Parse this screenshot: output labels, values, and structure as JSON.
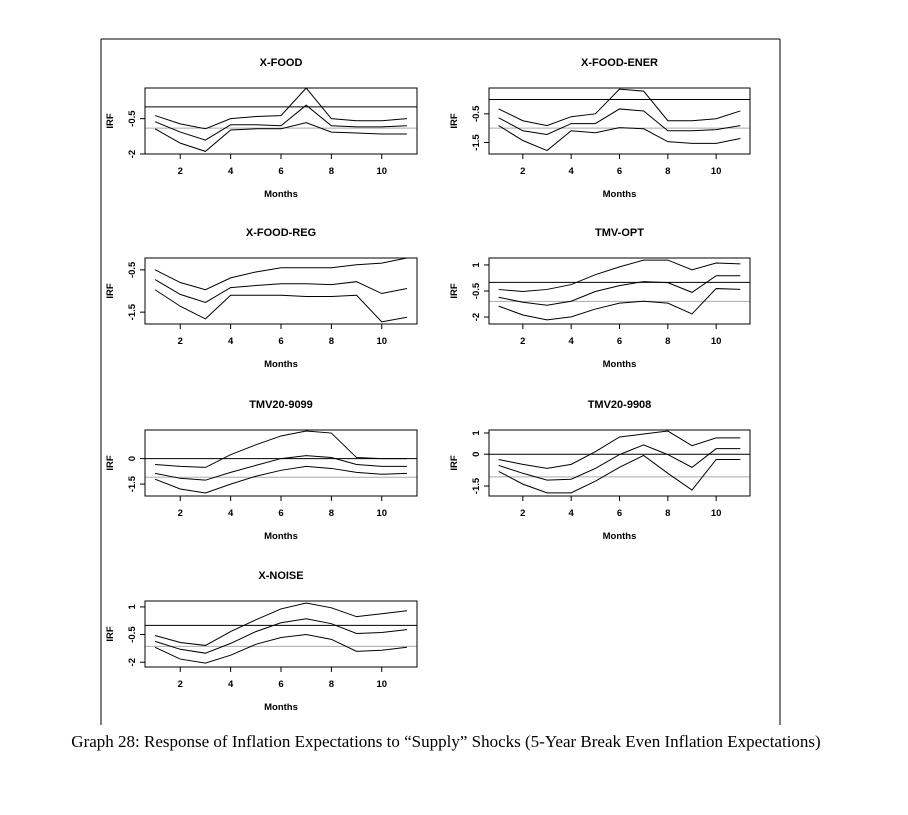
{
  "chart_data": [
    {
      "type": "line",
      "title": "X-FOOD",
      "xlabel": "Months",
      "ylabel": "IRF",
      "x": [
        1,
        2,
        3,
        4,
        5,
        6,
        7,
        8,
        9,
        10,
        11
      ],
      "xlim": [
        0.6,
        11.4
      ],
      "xticks": [
        2,
        4,
        6,
        8,
        10
      ],
      "ylim": [
        -2.0,
        0.8
      ],
      "yticks": [
        -0.5,
        -2.0
      ],
      "hlines": [
        {
          "value": 0,
          "color": "#000000"
        },
        {
          "value": -0.9,
          "color": "#aaaaaa"
        }
      ],
      "series": [
        {
          "color": "#000000",
          "values": [
            -0.37,
            -0.72,
            -0.93,
            -0.5,
            -0.41,
            -0.37,
            0.8,
            -0.5,
            -0.59,
            -0.59,
            -0.5
          ]
        },
        {
          "color": "#000000",
          "values": [
            -0.63,
            -1.07,
            -1.41,
            -0.76,
            -0.76,
            -0.8,
            0.07,
            -0.8,
            -0.85,
            -0.85,
            -0.8
          ]
        },
        {
          "color": "#000000",
          "values": [
            -0.93,
            -1.54,
            -1.89,
            -0.98,
            -0.93,
            -0.93,
            -0.67,
            -1.07,
            -1.11,
            -1.15,
            -1.15
          ]
        }
      ]
    },
    {
      "type": "line",
      "title": "X-FOOD-ENER",
      "xlabel": "Months",
      "ylabel": "IRF",
      "x": [
        1,
        2,
        3,
        4,
        5,
        6,
        7,
        8,
        9,
        10,
        11
      ],
      "xlim": [
        0.6,
        11.4
      ],
      "xticks": [
        2,
        4,
        6,
        8,
        10
      ],
      "ylim": [
        -1.9,
        0.4
      ],
      "yticks": [
        -0.5,
        -1.5
      ],
      "hlines": [
        {
          "value": 0,
          "color": "#000000"
        },
        {
          "value": -1.0,
          "color": "#aaaaaa"
        }
      ],
      "series": [
        {
          "color": "#000000",
          "values": [
            -0.33,
            -0.74,
            -0.91,
            -0.6,
            -0.5,
            0.36,
            0.29,
            -0.74,
            -0.74,
            -0.67,
            -0.4
          ]
        },
        {
          "color": "#000000",
          "values": [
            -0.64,
            -1.09,
            -1.22,
            -0.84,
            -0.84,
            -0.33,
            -0.4,
            -1.09,
            -1.09,
            -1.05,
            -0.91
          ]
        },
        {
          "color": "#000000",
          "values": [
            -0.91,
            -1.43,
            -1.78,
            -1.09,
            -1.16,
            -0.98,
            -1.02,
            -1.47,
            -1.53,
            -1.53,
            -1.36
          ]
        }
      ]
    },
    {
      "type": "line",
      "title": "X-FOOD-REG",
      "xlabel": "Months",
      "ylabel": "IRF",
      "x": [
        1,
        2,
        3,
        4,
        5,
        6,
        7,
        8,
        9,
        10,
        11
      ],
      "xlim": [
        0.6,
        11.4
      ],
      "xticks": [
        2,
        4,
        6,
        8,
        10
      ],
      "ylim": [
        -1.78,
        -0.22
      ],
      "yticks": [
        -0.5,
        -1.5
      ],
      "hlines": [],
      "series": [
        {
          "color": "#000000",
          "values": [
            -0.5,
            -0.8,
            -0.97,
            -0.69,
            -0.55,
            -0.45,
            -0.45,
            -0.45,
            -0.38,
            -0.34,
            -0.22
          ]
        },
        {
          "color": "#000000",
          "values": [
            -0.73,
            -1.08,
            -1.27,
            -0.92,
            -0.87,
            -0.83,
            -0.83,
            -0.85,
            -0.78,
            -1.06,
            -0.94
          ]
        },
        {
          "color": "#000000",
          "values": [
            -0.97,
            -1.36,
            -1.66,
            -1.1,
            -1.1,
            -1.1,
            -1.13,
            -1.13,
            -1.1,
            -1.73,
            -1.62
          ]
        }
      ]
    },
    {
      "type": "line",
      "title": "TMV-OPT",
      "xlabel": "Months",
      "ylabel": "IRF",
      "x": [
        1,
        2,
        3,
        4,
        5,
        6,
        7,
        8,
        9,
        10,
        11
      ],
      "xlim": [
        0.6,
        11.4
      ],
      "xticks": [
        2,
        4,
        6,
        8,
        10
      ],
      "ylim": [
        -2.4,
        1.4
      ],
      "yticks": [
        1.0,
        -0.5,
        -2.0
      ],
      "hlines": [
        {
          "value": 0,
          "color": "#000000"
        },
        {
          "value": -1.1,
          "color": "#aaaaaa"
        }
      ],
      "series": [
        {
          "color": "#000000",
          "values": [
            -0.41,
            -0.53,
            -0.41,
            -0.13,
            0.44,
            0.89,
            1.28,
            1.28,
            0.72,
            1.11,
            1.06
          ]
        },
        {
          "color": "#000000",
          "values": [
            -0.86,
            -1.15,
            -1.32,
            -1.09,
            -0.53,
            -0.19,
            0.04,
            -0.02,
            -0.58,
            0.38,
            0.38
          ]
        },
        {
          "color": "#000000",
          "values": [
            -1.37,
            -1.88,
            -2.16,
            -1.99,
            -1.54,
            -1.2,
            -1.09,
            -1.2,
            -1.82,
            -0.36,
            -0.41
          ]
        }
      ]
    },
    {
      "type": "line",
      "title": "TMV20-9099",
      "xlabel": "Months",
      "ylabel": "IRF",
      "x": [
        1,
        2,
        3,
        4,
        5,
        6,
        7,
        8,
        9,
        10,
        11
      ],
      "xlim": [
        0.6,
        11.4
      ],
      "xticks": [
        2,
        4,
        6,
        8,
        10
      ],
      "ylim": [
        -2.2,
        1.68
      ],
      "yticks": [
        0.0,
        -1.5
      ],
      "hlines": [
        {
          "value": 0,
          "color": "#000000"
        },
        {
          "value": -1.1,
          "color": "#aaaaaa"
        }
      ],
      "series": [
        {
          "color": "#000000",
          "values": [
            -0.35,
            -0.46,
            -0.52,
            0.23,
            0.81,
            1.33,
            1.62,
            1.5,
            0.06,
            0,
            0
          ]
        },
        {
          "color": "#000000",
          "values": [
            -0.87,
            -1.16,
            -1.27,
            -0.81,
            -0.4,
            0,
            0.17,
            0.06,
            -0.35,
            -0.46,
            -0.46
          ]
        },
        {
          "color": "#000000",
          "values": [
            -1.21,
            -1.79,
            -2.02,
            -1.5,
            -1.04,
            -0.69,
            -0.46,
            -0.58,
            -0.81,
            -0.92,
            -0.87
          ]
        }
      ]
    },
    {
      "type": "line",
      "title": "TMV20-9908",
      "xlabel": "Months",
      "ylabel": "IRF",
      "x": [
        1,
        2,
        3,
        4,
        5,
        6,
        7,
        8,
        9,
        10,
        11
      ],
      "xlim": [
        0.6,
        11.4
      ],
      "xticks": [
        2,
        4,
        6,
        8,
        10
      ],
      "ylim": [
        -1.97,
        1.14
      ],
      "yticks": [
        1.0,
        0.0,
        -1.5
      ],
      "hlines": [
        {
          "value": 0,
          "color": "#000000"
        },
        {
          "value": -1.07,
          "color": "#aaaaaa"
        }
      ],
      "series": [
        {
          "color": "#000000",
          "values": [
            -0.25,
            -0.48,
            -0.67,
            -0.48,
            0.12,
            0.81,
            0.95,
            1.09,
            0.4,
            0.77,
            0.77
          ]
        },
        {
          "color": "#000000",
          "values": [
            -0.53,
            -0.9,
            -1.22,
            -1.18,
            -0.67,
            -0.02,
            0.44,
            -0.02,
            -0.62,
            0.26,
            0.26
          ]
        },
        {
          "color": "#000000",
          "values": [
            -0.81,
            -1.41,
            -1.82,
            -1.82,
            -1.27,
            -0.62,
            -0.06,
            -0.9,
            -1.69,
            -0.25,
            -0.25
          ]
        }
      ]
    },
    {
      "type": "line",
      "title": "X-NOISE",
      "xlabel": "Months",
      "ylabel": "IRF",
      "x": [
        1,
        2,
        3,
        4,
        5,
        6,
        7,
        8,
        9,
        10,
        11
      ],
      "xlim": [
        0.6,
        11.4
      ],
      "xticks": [
        2,
        4,
        6,
        8,
        10
      ],
      "ylim": [
        -2.26,
        1.32
      ],
      "yticks": [
        1.0,
        -0.5,
        -2.0
      ],
      "hlines": [
        {
          "value": 0,
          "color": "#000000"
        },
        {
          "value": -1.14,
          "color": "#aaaaaa"
        }
      ],
      "series": [
        {
          "color": "#000000",
          "values": [
            -0.55,
            -0.93,
            -1.09,
            -0.34,
            0.3,
            0.89,
            1.21,
            0.95,
            0.47,
            0.63,
            0.79
          ]
        },
        {
          "color": "#000000",
          "values": [
            -0.87,
            -1.3,
            -1.51,
            -0.98,
            -0.34,
            0.14,
            0.36,
            0.09,
            -0.44,
            -0.39,
            -0.23
          ]
        },
        {
          "color": "#000000",
          "values": [
            -1.19,
            -1.83,
            -2.05,
            -1.62,
            -1.03,
            -0.66,
            -0.5,
            -0.76,
            -1.41,
            -1.35,
            -1.19
          ]
        }
      ]
    }
  ],
  "caption": "Graph 28: Response of Inflation Expectations to “Supply” Shocks (5-Year Break Even Inflation Expectations)"
}
